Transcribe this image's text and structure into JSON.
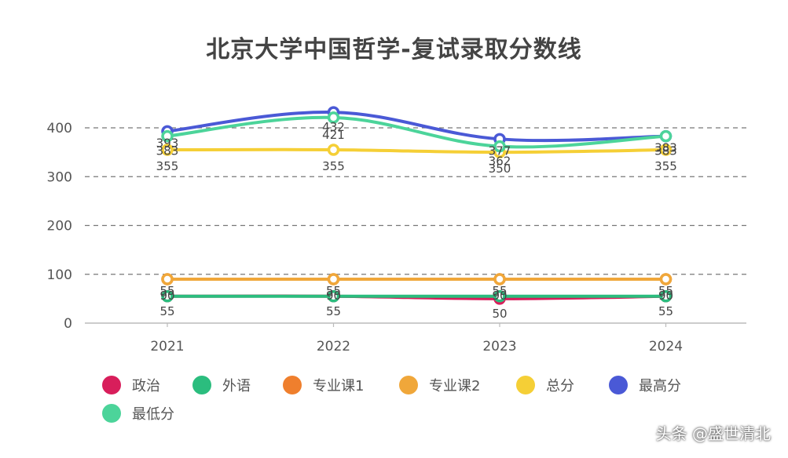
{
  "chart_data": {
    "type": "line",
    "title": "北京大学中国哲学-复试录取分数线",
    "categories": [
      "2021",
      "2022",
      "2023",
      "2024"
    ],
    "ylim": [
      0,
      400
    ],
    "yticks": [
      0,
      100,
      200,
      300,
      400
    ],
    "grid": true,
    "legend_position": "bottom",
    "series": [
      {
        "name": "政治",
        "color": "#d81e5b",
        "values": [
          55,
          55,
          50,
          55
        ]
      },
      {
        "name": "外语",
        "color": "#2bbd7e",
        "values": [
          55,
          55,
          55,
          55
        ]
      },
      {
        "name": "专业课1",
        "color": "#ef7f2d",
        "values": [
          90,
          90,
          90,
          90
        ]
      },
      {
        "name": "专业课2",
        "color": "#f0a73a",
        "values": [
          90,
          90,
          90,
          90
        ]
      },
      {
        "name": "总分",
        "color": "#f5cf36",
        "values": [
          355,
          355,
          350,
          355
        ]
      },
      {
        "name": "最高分",
        "color": "#4a59d6",
        "values": [
          393,
          432,
          377,
          383
        ]
      },
      {
        "name": "最低分",
        "color": "#4cd49a",
        "values": [
          383,
          421,
          362,
          383
        ]
      }
    ]
  },
  "watermark": "头条 @盛世清北"
}
